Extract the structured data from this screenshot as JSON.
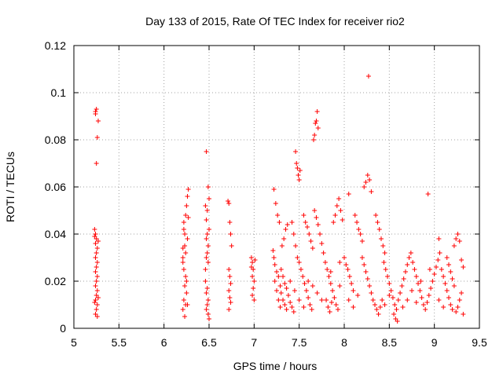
{
  "chart_data": {
    "type": "scatter",
    "title": "Day 133 of 2015, Rate Of TEC Index for receiver rio2",
    "xlabel": "GPS time / hours",
    "ylabel": "ROTI / TECUs",
    "xlim": [
      5,
      9.5
    ],
    "ylim": [
      0,
      0.12
    ],
    "x_ticks": [
      5,
      5.5,
      6,
      6.5,
      7,
      7.5,
      8,
      8.5,
      9,
      9.5
    ],
    "x_tick_labels": [
      "5",
      "5.5",
      "6",
      "6.5",
      "7",
      "7.5",
      "8",
      "8.5",
      "9",
      "9.5"
    ],
    "y_ticks": [
      0,
      0.02,
      0.04,
      0.06,
      0.08,
      0.1,
      0.12
    ],
    "y_tick_labels": [
      "0",
      "0.02",
      "0.04",
      "0.06",
      "0.08",
      "0.1",
      "0.12"
    ],
    "grid": true,
    "marker": "+",
    "color": "#ff0000",
    "series": [
      {
        "name": "ROTI",
        "points": [
          [
            5.24,
            0.092
          ],
          [
            5.24,
            0.091
          ],
          [
            5.25,
            0.093
          ],
          [
            5.27,
            0.088
          ],
          [
            5.26,
            0.081
          ],
          [
            5.25,
            0.07
          ],
          [
            5.23,
            0.042
          ],
          [
            5.24,
            0.04
          ],
          [
            5.25,
            0.038
          ],
          [
            5.24,
            0.036
          ],
          [
            5.26,
            0.034
          ],
          [
            5.25,
            0.032
          ],
          [
            5.24,
            0.03
          ],
          [
            5.26,
            0.028
          ],
          [
            5.25,
            0.026
          ],
          [
            5.24,
            0.024
          ],
          [
            5.26,
            0.022
          ],
          [
            5.25,
            0.02
          ],
          [
            5.24,
            0.018
          ],
          [
            5.26,
            0.016
          ],
          [
            5.25,
            0.014
          ],
          [
            5.24,
            0.012
          ],
          [
            5.26,
            0.01
          ],
          [
            5.25,
            0.008
          ],
          [
            5.24,
            0.006
          ],
          [
            5.26,
            0.005
          ],
          [
            5.23,
            0.011
          ],
          [
            5.27,
            0.013
          ],
          [
            5.23,
            0.039
          ],
          [
            5.27,
            0.037
          ],
          [
            6.21,
            0.03
          ],
          [
            6.23,
            0.04
          ],
          [
            6.22,
            0.045
          ],
          [
            6.24,
            0.048
          ],
          [
            6.25,
            0.052
          ],
          [
            6.26,
            0.056
          ],
          [
            6.27,
            0.059
          ],
          [
            6.23,
            0.035
          ],
          [
            6.21,
            0.028
          ],
          [
            6.22,
            0.025
          ],
          [
            6.24,
            0.022
          ],
          [
            6.23,
            0.018
          ],
          [
            6.25,
            0.015
          ],
          [
            6.22,
            0.012
          ],
          [
            6.24,
            0.01
          ],
          [
            6.21,
            0.008
          ],
          [
            6.23,
            0.005
          ],
          [
            6.26,
            0.01
          ],
          [
            6.25,
            0.02
          ],
          [
            6.27,
            0.047
          ],
          [
            6.22,
            0.042
          ],
          [
            6.24,
            0.032
          ],
          [
            6.26,
            0.038
          ],
          [
            6.21,
            0.034
          ],
          [
            6.47,
            0.075
          ],
          [
            6.46,
            0.052
          ],
          [
            6.48,
            0.05
          ],
          [
            6.47,
            0.046
          ],
          [
            6.49,
            0.06
          ],
          [
            6.5,
            0.055
          ],
          [
            6.48,
            0.04
          ],
          [
            6.47,
            0.038
          ],
          [
            6.49,
            0.035
          ],
          [
            6.48,
            0.032
          ],
          [
            6.47,
            0.03
          ],
          [
            6.49,
            0.028
          ],
          [
            6.46,
            0.02
          ],
          [
            6.48,
            0.017
          ],
          [
            6.47,
            0.015
          ],
          [
            6.49,
            0.012
          ],
          [
            6.48,
            0.01
          ],
          [
            6.47,
            0.008
          ],
          [
            6.49,
            0.006
          ],
          [
            6.5,
            0.004
          ],
          [
            6.46,
            0.025
          ],
          [
            6.5,
            0.042
          ],
          [
            6.71,
            0.054
          ],
          [
            6.72,
            0.053
          ],
          [
            6.73,
            0.045
          ],
          [
            6.74,
            0.04
          ],
          [
            6.75,
            0.035
          ],
          [
            6.72,
            0.025
          ],
          [
            6.73,
            0.022
          ],
          [
            6.74,
            0.019
          ],
          [
            6.72,
            0.016
          ],
          [
            6.73,
            0.013
          ],
          [
            6.74,
            0.011
          ],
          [
            6.72,
            0.008
          ],
          [
            6.97,
            0.03
          ],
          [
            6.98,
            0.028
          ],
          [
            6.99,
            0.025
          ],
          [
            6.98,
            0.022
          ],
          [
            7.0,
            0.02
          ],
          [
            6.99,
            0.017
          ],
          [
            6.98,
            0.014
          ],
          [
            7.0,
            0.012
          ],
          [
            6.97,
            0.026
          ],
          [
            7.01,
            0.029
          ],
          [
            7.22,
            0.059
          ],
          [
            7.24,
            0.053
          ],
          [
            7.26,
            0.048
          ],
          [
            7.28,
            0.045
          ],
          [
            7.21,
            0.033
          ],
          [
            7.22,
            0.03
          ],
          [
            7.23,
            0.027
          ],
          [
            7.25,
            0.024
          ],
          [
            7.27,
            0.022
          ],
          [
            7.29,
            0.018
          ],
          [
            7.3,
            0.015
          ],
          [
            7.32,
            0.012
          ],
          [
            7.34,
            0.01
          ],
          [
            7.36,
            0.008
          ],
          [
            7.23,
            0.02
          ],
          [
            7.25,
            0.016
          ],
          [
            7.27,
            0.012
          ],
          [
            7.29,
            0.009
          ],
          [
            7.31,
            0.035
          ],
          [
            7.33,
            0.038
          ],
          [
            7.35,
            0.042
          ],
          [
            7.37,
            0.044
          ],
          [
            7.3,
            0.025
          ],
          [
            7.32,
            0.022
          ],
          [
            7.34,
            0.019
          ],
          [
            7.36,
            0.017
          ],
          [
            7.38,
            0.014
          ],
          [
            7.4,
            0.011
          ],
          [
            7.42,
            0.009
          ],
          [
            7.44,
            0.007
          ],
          [
            7.46,
            0.075
          ],
          [
            7.47,
            0.07
          ],
          [
            7.48,
            0.068
          ],
          [
            7.49,
            0.065
          ],
          [
            7.5,
            0.063
          ],
          [
            7.51,
            0.067
          ],
          [
            7.42,
            0.045
          ],
          [
            7.44,
            0.04
          ],
          [
            7.46,
            0.035
          ],
          [
            7.48,
            0.03
          ],
          [
            7.5,
            0.028
          ],
          [
            7.52,
            0.025
          ],
          [
            7.54,
            0.022
          ],
          [
            7.56,
            0.019
          ],
          [
            7.58,
            0.016
          ],
          [
            7.6,
            0.013
          ],
          [
            7.62,
            0.01
          ],
          [
            7.64,
            0.008
          ],
          [
            7.55,
            0.048
          ],
          [
            7.57,
            0.045
          ],
          [
            7.59,
            0.043
          ],
          [
            7.61,
            0.04
          ],
          [
            7.63,
            0.037
          ],
          [
            7.65,
            0.034
          ],
          [
            7.66,
            0.08
          ],
          [
            7.67,
            0.082
          ],
          [
            7.68,
            0.087
          ],
          [
            7.69,
            0.088
          ],
          [
            7.7,
            0.092
          ],
          [
            7.71,
            0.085
          ],
          [
            7.67,
            0.05
          ],
          [
            7.69,
            0.047
          ],
          [
            7.71,
            0.044
          ],
          [
            7.73,
            0.04
          ],
          [
            7.75,
            0.036
          ],
          [
            7.77,
            0.032
          ],
          [
            7.79,
            0.028
          ],
          [
            7.81,
            0.025
          ],
          [
            7.83,
            0.022
          ],
          [
            7.85,
            0.019
          ],
          [
            7.87,
            0.016
          ],
          [
            7.89,
            0.013
          ],
          [
            7.91,
            0.01
          ],
          [
            7.93,
            0.008
          ],
          [
            7.8,
            0.012
          ],
          [
            7.82,
            0.009
          ],
          [
            7.84,
            0.007
          ],
          [
            7.86,
            0.011
          ],
          [
            7.88,
            0.045
          ],
          [
            7.9,
            0.048
          ],
          [
            7.92,
            0.052
          ],
          [
            7.94,
            0.055
          ],
          [
            7.96,
            0.05
          ],
          [
            7.98,
            0.046
          ],
          [
            8.0,
            0.03
          ],
          [
            8.02,
            0.027
          ],
          [
            8.04,
            0.025
          ],
          [
            8.06,
            0.022
          ],
          [
            8.08,
            0.019
          ],
          [
            8.1,
            0.016
          ],
          [
            8.05,
            0.057
          ],
          [
            8.12,
            0.048
          ],
          [
            8.14,
            0.045
          ],
          [
            8.16,
            0.042
          ],
          [
            8.18,
            0.04
          ],
          [
            8.2,
            0.037
          ],
          [
            8.22,
            0.06
          ],
          [
            8.24,
            0.062
          ],
          [
            8.26,
            0.065
          ],
          [
            8.28,
            0.063
          ],
          [
            8.3,
            0.058
          ],
          [
            8.27,
            0.107
          ],
          [
            8.2,
            0.03
          ],
          [
            8.22,
            0.027
          ],
          [
            8.24,
            0.024
          ],
          [
            8.26,
            0.021
          ],
          [
            8.28,
            0.018
          ],
          [
            8.3,
            0.015
          ],
          [
            8.32,
            0.012
          ],
          [
            8.34,
            0.01
          ],
          [
            8.36,
            0.008
          ],
          [
            8.38,
            0.006
          ],
          [
            8.4,
            0.009
          ],
          [
            8.42,
            0.012
          ],
          [
            8.35,
            0.048
          ],
          [
            8.37,
            0.045
          ],
          [
            8.39,
            0.042
          ],
          [
            8.41,
            0.038
          ],
          [
            8.43,
            0.035
          ],
          [
            8.45,
            0.032
          ],
          [
            8.44,
            0.028
          ],
          [
            8.46,
            0.025
          ],
          [
            8.48,
            0.022
          ],
          [
            8.5,
            0.019
          ],
          [
            8.52,
            0.016
          ],
          [
            8.54,
            0.013
          ],
          [
            8.56,
            0.01
          ],
          [
            8.55,
            0.006
          ],
          [
            8.57,
            0.004
          ],
          [
            8.59,
            0.003
          ],
          [
            8.58,
            0.008
          ],
          [
            8.6,
            0.012
          ],
          [
            8.62,
            0.015
          ],
          [
            8.64,
            0.018
          ],
          [
            8.66,
            0.021
          ],
          [
            8.68,
            0.024
          ],
          [
            8.7,
            0.027
          ],
          [
            8.72,
            0.03
          ],
          [
            8.74,
            0.032
          ],
          [
            8.76,
            0.028
          ],
          [
            8.78,
            0.025
          ],
          [
            8.8,
            0.022
          ],
          [
            8.82,
            0.019
          ],
          [
            8.84,
            0.016
          ],
          [
            8.86,
            0.013
          ],
          [
            8.88,
            0.01
          ],
          [
            8.9,
            0.008
          ],
          [
            8.92,
            0.011
          ],
          [
            8.94,
            0.014
          ],
          [
            8.96,
            0.017
          ],
          [
            8.93,
            0.057
          ],
          [
            8.98,
            0.02
          ],
          [
            9.0,
            0.023
          ],
          [
            9.02,
            0.026
          ],
          [
            9.04,
            0.029
          ],
          [
            9.06,
            0.032
          ],
          [
            9.05,
            0.038
          ],
          [
            9.08,
            0.025
          ],
          [
            9.1,
            0.022
          ],
          [
            9.12,
            0.019
          ],
          [
            9.14,
            0.016
          ],
          [
            9.16,
            0.013
          ],
          [
            9.18,
            0.01
          ],
          [
            9.2,
            0.008
          ],
          [
            9.22,
            0.035
          ],
          [
            9.24,
            0.038
          ],
          [
            9.26,
            0.04
          ],
          [
            9.28,
            0.037
          ],
          [
            9.3,
            0.029
          ],
          [
            9.32,
            0.026
          ],
          [
            9.3,
            0.015
          ],
          [
            9.28,
            0.012
          ],
          [
            9.26,
            0.009
          ],
          [
            9.24,
            0.007
          ],
          [
            9.32,
            0.006
          ],
          [
            9.22,
            0.018
          ],
          [
            9.2,
            0.021
          ],
          [
            9.18,
            0.024
          ],
          [
            9.16,
            0.027
          ],
          [
            9.14,
            0.03
          ],
          [
            7.6,
            0.02
          ],
          [
            7.7,
            0.015
          ],
          [
            7.75,
            0.012
          ],
          [
            7.95,
            0.018
          ],
          [
            8.1,
            0.009
          ],
          [
            8.15,
            0.014
          ],
          [
            8.45,
            0.01
          ],
          [
            8.5,
            0.014
          ],
          [
            8.65,
            0.009
          ],
          [
            8.7,
            0.012
          ],
          [
            8.75,
            0.016
          ],
          [
            8.8,
            0.011
          ],
          [
            8.85,
            0.02
          ],
          [
            8.95,
            0.025
          ],
          [
            9.05,
            0.012
          ],
          [
            9.1,
            0.009
          ],
          [
            7.4,
            0.02
          ],
          [
            7.45,
            0.016
          ],
          [
            7.5,
            0.012
          ],
          [
            7.55,
            0.009
          ],
          [
            7.65,
            0.018
          ],
          [
            7.85,
            0.024
          ],
          [
            7.95,
            0.028
          ],
          [
            8.05,
            0.012
          ]
        ]
      }
    ]
  }
}
